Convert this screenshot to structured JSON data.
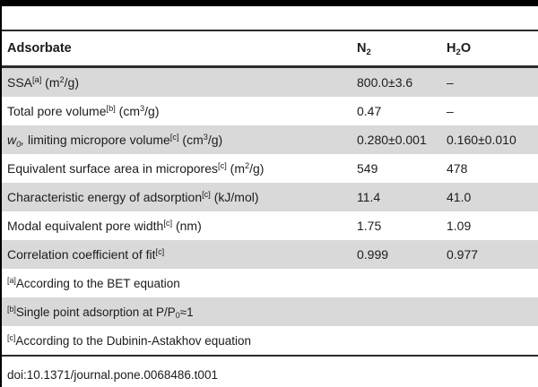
{
  "table": {
    "header": {
      "col1_parts": [
        {
          "k": "t",
          "t": "Adsorbate"
        }
      ],
      "col2_parts": [
        {
          "k": "t",
          "t": "N"
        },
        {
          "k": "sub",
          "t": "2"
        }
      ],
      "col3_parts": [
        {
          "k": "t",
          "t": "H"
        },
        {
          "k": "sub",
          "t": "2"
        },
        {
          "k": "t",
          "t": "O"
        }
      ]
    },
    "rows": [
      {
        "label": [
          {
            "k": "t",
            "t": "SSA"
          },
          {
            "k": "sup",
            "t": "[a]"
          },
          {
            "k": "t",
            "t": " (m"
          },
          {
            "k": "sup",
            "t": "2"
          },
          {
            "k": "t",
            "t": "/g)"
          }
        ],
        "n2": "800.0±3.6",
        "h2o": "–"
      },
      {
        "label": [
          {
            "k": "t",
            "t": "Total pore volume"
          },
          {
            "k": "sup",
            "t": "[b]"
          },
          {
            "k": "t",
            "t": " (cm"
          },
          {
            "k": "sup",
            "t": "3"
          },
          {
            "k": "t",
            "t": "/g)"
          }
        ],
        "n2": "0.47",
        "h2o": "–"
      },
      {
        "label": [
          {
            "k": "i",
            "t": "w"
          },
          {
            "k": "isub",
            "t": "0"
          },
          {
            "k": "i",
            "t": ","
          },
          {
            "k": "t",
            "t": " limiting micropore volume"
          },
          {
            "k": "sup",
            "t": "[c]"
          },
          {
            "k": "t",
            "t": " (cm"
          },
          {
            "k": "sup",
            "t": "3"
          },
          {
            "k": "t",
            "t": "/g)"
          }
        ],
        "n2": "0.280±0.001",
        "h2o": "0.160±0.010"
      },
      {
        "label": [
          {
            "k": "t",
            "t": "Equivalent surface area in micropores"
          },
          {
            "k": "sup",
            "t": "[c]"
          },
          {
            "k": "t",
            "t": " (m"
          },
          {
            "k": "sup",
            "t": "2"
          },
          {
            "k": "t",
            "t": "/g)"
          }
        ],
        "n2": "549",
        "h2o": "478"
      },
      {
        "label": [
          {
            "k": "t",
            "t": "Characteristic energy of adsorption"
          },
          {
            "k": "sup",
            "t": "[c]"
          },
          {
            "k": "t",
            "t": " (kJ/mol)"
          }
        ],
        "n2": "11.4",
        "h2o": "41.0"
      },
      {
        "label": [
          {
            "k": "t",
            "t": "Modal equivalent pore width"
          },
          {
            "k": "sup",
            "t": "[c]"
          },
          {
            "k": "t",
            "t": " (nm)"
          }
        ],
        "n2": "1.75",
        "h2o": "1.09"
      },
      {
        "label": [
          {
            "k": "t",
            "t": "Correlation coefficient of fit"
          },
          {
            "k": "sup",
            "t": "[c]"
          }
        ],
        "n2": "0.999",
        "h2o": "0.977"
      }
    ],
    "footnotes": [
      {
        "parts": [
          {
            "k": "sup",
            "t": "[a]"
          },
          {
            "k": "t",
            "t": "According to the BET equation"
          }
        ]
      },
      {
        "parts": [
          {
            "k": "sup",
            "t": "[b]"
          },
          {
            "k": "t",
            "t": "Single point adsorption at P/P"
          },
          {
            "k": "sub",
            "t": "0"
          },
          {
            "k": "t",
            "t": "≈1"
          }
        ]
      },
      {
        "parts": [
          {
            "k": "sup",
            "t": "[c]"
          },
          {
            "k": "t",
            "t": "According to the Dubinin-Astakhov equation"
          }
        ]
      }
    ]
  },
  "doi": "doi:10.1371/journal.pone.0068486.t001",
  "colors": {
    "row_shade": "#d9d9d9",
    "rule": "#2b2b2b",
    "bar": "#000000",
    "text": "#1c1c1c"
  }
}
